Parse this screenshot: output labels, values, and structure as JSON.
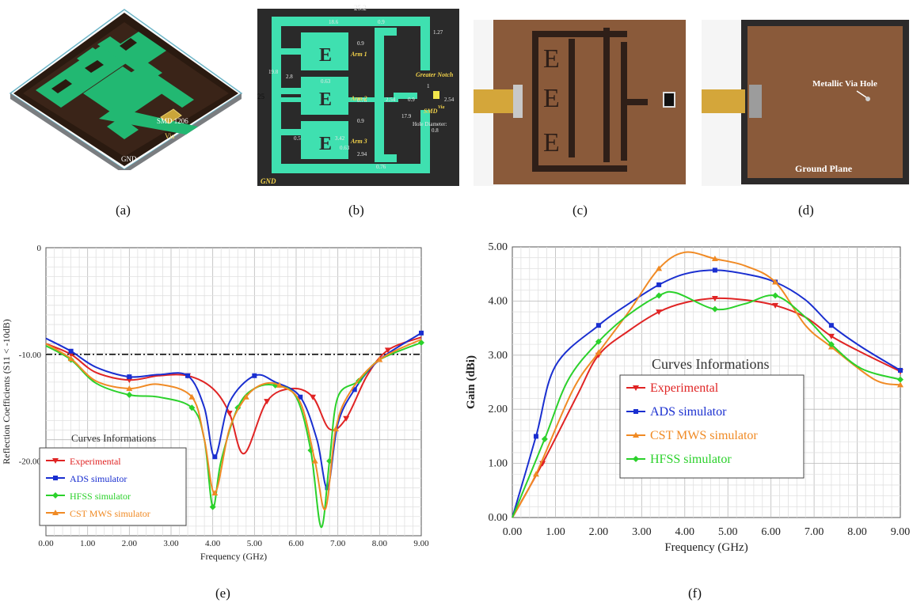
{
  "captions": {
    "a": "(a)",
    "b": "(b)",
    "c": "(c)",
    "d": "(d)",
    "e": "(e)",
    "f": "(f)"
  },
  "panel_a": {
    "smd_label": "SMD 1206",
    "via_label": "Via",
    "gnd_label": "GND"
  },
  "panel_b": {
    "dims": {
      "width": "25.2",
      "height": "25",
      "top": "18.6",
      "top_gap": "0.9",
      "right_edge": "1.27",
      "left_dim": "19.8",
      "left_small": "2.8",
      "gap1": "0.9",
      "gap2": "0.63",
      "gap3": "0.76",
      "gap4": "0.9",
      "gap5": "3.42",
      "gap6": "0.63",
      "gap7": "0.5",
      "gap8": "2.94",
      "gap9": "0.76",
      "feed1": "2.54",
      "feed2": "0.9",
      "notch_gap": "2.54",
      "notch_len": "17.9",
      "one": "1",
      "hole_value": "0.8"
    },
    "arm1": "Arm 1",
    "arm2": "Arm 2",
    "arm3": "Arm 3",
    "greater_notch": "Greater Notch",
    "smd": "SMD",
    "via": "Via",
    "hole_diameter": "Hole Diameter:",
    "gnd": "GND"
  },
  "panel_d": {
    "via_label": "Metallic Via Hole",
    "ground_label": "Ground Plane"
  },
  "colors": {
    "experimental": "#e02424",
    "ads": "#1a2fd0",
    "hfss": "#2bd12b",
    "cst": "#f08a24",
    "substrate": "#3a2a1e",
    "copper_green": "#2bc27a"
  },
  "chart_data": [
    {
      "type": "line",
      "xlabel": "Frequency (GHz)",
      "ylabel": "Reflection Coefficients (S11 < -10dB)",
      "xlim": [
        0,
        9
      ],
      "ylim": [
        -27,
        0
      ],
      "x_ticks": [
        "0.00",
        "1.00",
        "2.00",
        "3.00",
        "4.00",
        "5.00",
        "6.00",
        "7.00",
        "8.00",
        "9.00"
      ],
      "y_ticks": [
        "0",
        "-10.00",
        "-20.00"
      ],
      "legend_title": "Curves Informations",
      "legend_placement": "bottom-left",
      "threshold": -10,
      "grid": true,
      "series": [
        {
          "name": "Experimental",
          "x": [
            0,
            0.6,
            1.2,
            2.0,
            2.7,
            3.4,
            4.0,
            4.4,
            4.75,
            5.3,
            5.9,
            6.4,
            6.8,
            7.2,
            7.7,
            8.2,
            9.0
          ],
          "values": [
            -9.0,
            -10.0,
            -11.7,
            -12.4,
            -12.0,
            -12.0,
            -13.2,
            -15.5,
            -19.3,
            -14.4,
            -13.2,
            -14.0,
            -17.0,
            -16.0,
            -12.0,
            -9.6,
            -8.4
          ]
        },
        {
          "name": "ADS simulator",
          "x": [
            0,
            0.6,
            1.2,
            2.0,
            2.7,
            3.4,
            3.8,
            4.05,
            4.4,
            5.0,
            5.5,
            6.1,
            6.5,
            6.75,
            7.0,
            7.4,
            8.0,
            9.0
          ],
          "values": [
            -8.5,
            -9.7,
            -11.2,
            -12.1,
            -11.9,
            -12.0,
            -15.0,
            -19.6,
            -14.5,
            -12.0,
            -12.6,
            -14.0,
            -18.0,
            -22.5,
            -16.5,
            -13.3,
            -10.5,
            -8.0
          ]
        },
        {
          "name": "HFSS simulator",
          "x": [
            0,
            0.6,
            1.2,
            2.0,
            2.7,
            3.5,
            3.8,
            4.0,
            4.2,
            4.6,
            5.0,
            5.5,
            6.0,
            6.35,
            6.6,
            6.8,
            7.0,
            7.5,
            8.0,
            9.0
          ],
          "values": [
            -9.2,
            -10.5,
            -12.7,
            -13.8,
            -14.0,
            -15.0,
            -18.0,
            -24.3,
            -20.0,
            -15.0,
            -13.2,
            -12.9,
            -14.0,
            -19.0,
            -26.2,
            -20.0,
            -14.0,
            -12.5,
            -10.5,
            -8.9
          ]
        },
        {
          "name": "CST MWS simulator",
          "x": [
            0,
            0.6,
            1.2,
            2.0,
            2.7,
            3.5,
            3.8,
            4.05,
            4.4,
            4.8,
            5.2,
            5.6,
            6.1,
            6.45,
            6.7,
            6.95,
            7.3,
            8.0,
            9.0
          ],
          "values": [
            -9.0,
            -10.4,
            -12.5,
            -13.2,
            -12.8,
            -14.0,
            -18.0,
            -23.0,
            -17.0,
            -14.0,
            -12.8,
            -12.9,
            -14.5,
            -20.0,
            -24.5,
            -17.0,
            -13.5,
            -10.5,
            -8.6
          ]
        }
      ]
    },
    {
      "type": "line",
      "xlabel": "Frequency (GHz)",
      "ylabel": "Gain (dBi)",
      "xlim": [
        0,
        9
      ],
      "ylim": [
        0,
        5
      ],
      "x_ticks": [
        "0.00",
        "1.00",
        "2.00",
        "3.00",
        "4.00",
        "5.00",
        "6.00",
        "7.00",
        "8.00",
        "9.00"
      ],
      "y_ticks": [
        "0.00",
        "1.00",
        "2.00",
        "3.00",
        "4.00",
        "5.00"
      ],
      "legend_title": "Curves Informations",
      "legend_placement": "center-left",
      "grid": true,
      "series": [
        {
          "name": "Experimental",
          "x": [
            0,
            0.7,
            1.5,
            2.0,
            2.7,
            3.4,
            4.0,
            4.7,
            5.4,
            6.1,
            6.8,
            7.4,
            8.1,
            9.0
          ],
          "values": [
            0,
            1.0,
            2.25,
            3.0,
            3.45,
            3.8,
            3.97,
            4.05,
            4.02,
            3.92,
            3.7,
            3.35,
            3.05,
            2.7
          ]
        },
        {
          "name": "ADS simulator",
          "x": [
            0,
            0.55,
            1.0,
            2.0,
            2.7,
            3.4,
            4.0,
            4.7,
            5.4,
            6.1,
            6.8,
            7.4,
            8.1,
            9.0
          ],
          "values": [
            0,
            1.5,
            2.8,
            3.55,
            3.95,
            4.3,
            4.5,
            4.57,
            4.5,
            4.35,
            4.02,
            3.55,
            3.15,
            2.72
          ]
        },
        {
          "name": "CST MWS simulator",
          "x": [
            0,
            0.55,
            1.4,
            2.0,
            2.7,
            3.4,
            4.0,
            4.7,
            5.4,
            6.1,
            6.8,
            7.4,
            8.4,
            9.0
          ],
          "values": [
            0,
            0.8,
            2.35,
            3.05,
            3.8,
            4.6,
            4.9,
            4.78,
            4.65,
            4.35,
            3.55,
            3.15,
            2.55,
            2.45
          ]
        },
        {
          "name": "HFSS simulator",
          "x": [
            0,
            0.75,
            1.3,
            2.0,
            2.7,
            3.4,
            3.8,
            4.7,
            5.4,
            6.1,
            6.8,
            7.4,
            8.1,
            9.0
          ],
          "values": [
            0,
            1.45,
            2.55,
            3.25,
            3.75,
            4.1,
            4.15,
            3.85,
            3.95,
            4.1,
            3.7,
            3.2,
            2.75,
            2.55
          ]
        }
      ]
    }
  ]
}
